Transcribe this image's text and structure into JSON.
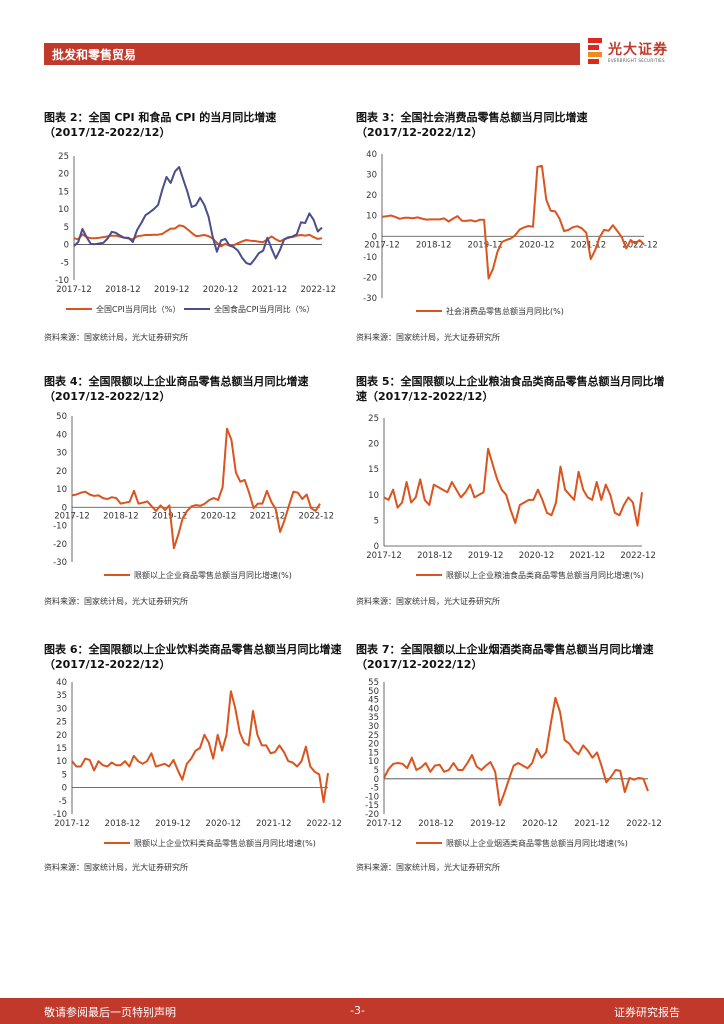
{
  "header": {
    "section": "批发和零售贸易",
    "logo_cn": "光大证券",
    "logo_en": "EVERBRIGHT SECURITIES"
  },
  "footer": {
    "left": "敬请参阅最后一页特别声明",
    "page": "-3-",
    "right": "证券研究报告"
  },
  "colors": {
    "red": "#d9541e",
    "navy": "#4a4e8a",
    "brand": "#c0392b"
  },
  "panels": [
    {
      "title_line1": "图表 2：全国 CPI 和食品 CPI 的当月同比增速",
      "title_line2": "（2017/12-2022/12）",
      "source": "资料来源：国家统计局，光大证券研究所"
    },
    {
      "title_line1": "图表 3：全国社会消费品零售总额当月同比增速",
      "title_line2": "（2017/12-2022/12）",
      "source": "资料来源：国家统计局，光大证券研究所"
    },
    {
      "title_line1": "图表 4：全国限额以上企业商品零售总额当月同比增速",
      "title_line2": "（2017/12-2022/12）",
      "source": "资料来源：国家统计局，光大证券研究所"
    },
    {
      "title_line1": "图表 5：全国限额以上企业粮油食品类商品零售总额当月同比增",
      "title_line2": "速（2017/12-2022/12）",
      "source": "资料来源：国家统计局，光大证券研究所"
    },
    {
      "title_line1": "图表 6：全国限额以上企业饮料类商品零售总额当月同比增速",
      "title_line2": "（2017/12-2022/12）",
      "source": "资料来源：国家统计局，光大证券研究所"
    },
    {
      "title_line1": "图表 7：全国限额以上企业烟酒类商品零售总额当月同比增速",
      "title_line2": "（2017/12-2022/12）",
      "source": "资料来源：国家统计局，光大证券研究所"
    }
  ],
  "chart_data": [
    {
      "type": "line",
      "x_ticks": [
        "2017-12",
        "2018-12",
        "2019-12",
        "2020-12",
        "2021-12",
        "2022-12"
      ],
      "ylim": [
        -10,
        25
      ],
      "y_ticks": [
        -10,
        -5,
        0,
        5,
        10,
        15,
        20,
        25
      ],
      "series": [
        {
          "name": "全国CPI当月同比（%）",
          "color": "#d9541e",
          "values": [
            1.8,
            1.5,
            2.9,
            2.1,
            1.8,
            1.8,
            1.9,
            2.1,
            2.3,
            2.5,
            2.5,
            2.2,
            1.9,
            1.7,
            1.5,
            2.3,
            2.5,
            2.7,
            2.7,
            2.8,
            2.8,
            3.0,
            3.8,
            4.5,
            4.5,
            5.4,
            5.2,
            4.3,
            3.3,
            2.4,
            2.5,
            2.7,
            2.4,
            1.7,
            0.5,
            -0.5,
            0.2,
            -0.3,
            -0.2,
            0.4,
            0.9,
            1.3,
            1.1,
            1.0,
            0.8,
            0.7,
            1.5,
            2.3,
            1.5,
            0.9,
            1.5,
            2.1,
            2.1,
            2.5,
            2.7,
            2.5,
            2.8,
            2.1,
            1.6,
            1.8
          ]
        },
        {
          "name": "全国食品CPI当月同比（%）",
          "color": "#4a4e8a",
          "values": [
            -0.4,
            0.7,
            4.4,
            2.1,
            0.2,
            0.1,
            0.3,
            0.5,
            1.7,
            3.6,
            3.3,
            2.5,
            1.9,
            1.9,
            0.7,
            4.1,
            6.1,
            8.3,
            9.1,
            10.0,
            11.2,
            15.5,
            19.1,
            17.4,
            20.6,
            21.9,
            18.3,
            14.8,
            10.6,
            11.1,
            13.2,
            11.2,
            7.9,
            2.2,
            -2.0,
            1.2,
            1.6,
            -0.3,
            -0.7,
            -1.7,
            -3.7,
            -5.2,
            -5.6,
            -4.1,
            -2.4,
            -1.7,
            1.9,
            -1.2,
            -3.9,
            -1.5,
            1.5,
            1.9,
            2.3,
            2.9,
            6.3,
            6.1,
            8.8,
            7.0,
            3.7,
            4.8
          ]
        }
      ]
    },
    {
      "type": "line",
      "x_ticks": [
        "2017-12",
        "2018-12",
        "2019-12",
        "2020-12",
        "2021-12",
        "2022-12"
      ],
      "ylim": [
        -30,
        40
      ],
      "y_ticks": [
        -30,
        -20,
        -10,
        0,
        10,
        20,
        30,
        40
      ],
      "series": [
        {
          "name": "社会消费品零售总额当月同比(%)",
          "color": "#d9541e",
          "values": [
            9.4,
            9.7,
            10.1,
            9.4,
            8.5,
            9.0,
            9.0,
            8.8,
            9.2,
            8.6,
            8.1,
            8.2,
            8.2,
            8.2,
            8.7,
            7.2,
            8.6,
            9.8,
            7.6,
            7.5,
            7.8,
            7.2,
            8.0,
            8.0,
            -20.5,
            -15.8,
            -7.5,
            -2.8,
            -1.8,
            -1.1,
            0.5,
            3.3,
            4.3,
            5.0,
            4.6,
            33.8,
            34.2,
            17.7,
            12.4,
            12.1,
            8.5,
            2.5,
            3.1,
            4.4,
            4.9,
            3.9,
            1.7,
            -11.1,
            -6.7,
            -0.5,
            3.1,
            2.7,
            5.4,
            2.5,
            -0.5,
            -5.9,
            -1.8,
            -3.5,
            -1.9,
            -4.0
          ]
        }
      ]
    },
    {
      "type": "line",
      "x_ticks": [
        "2017-12",
        "2018-12",
        "2019-12",
        "2020-12",
        "2021-12",
        "2022-12"
      ],
      "ylim": [
        -30,
        50
      ],
      "y_ticks": [
        -30,
        -20,
        -10,
        0,
        10,
        20,
        30,
        40,
        50
      ],
      "series": [
        {
          "name": "限额以上企业商品零售总额当月同比增速(%)",
          "color": "#d9541e",
          "values": [
            6.5,
            7.0,
            8.0,
            8.5,
            7.0,
            6.2,
            6.5,
            5.0,
            4.5,
            5.5,
            5.0,
            2.0,
            2.5,
            3.0,
            9.0,
            2.0,
            2.5,
            3.2,
            0.5,
            -2.0,
            1.0,
            -1.5,
            1.0,
            -22.5,
            -15.0,
            -6.0,
            -2.0,
            0.5,
            1.2,
            0.8,
            2.0,
            4.0,
            5.0,
            4.0,
            11.0,
            43.0,
            37.0,
            19.0,
            14.0,
            15.0,
            8.0,
            -0.5,
            2.0,
            2.0,
            9.0,
            3.0,
            -1.0,
            -13.5,
            -7.0,
            1.0,
            8.5,
            8.0,
            4.5,
            7.0,
            -0.5,
            -2.0,
            2.0
          ]
        }
      ]
    },
    {
      "type": "line",
      "x_ticks": [
        "2017-12",
        "2018-12",
        "2019-12",
        "2020-12",
        "2021-12",
        "2022-12"
      ],
      "ylim": [
        0,
        25
      ],
      "y_ticks": [
        0,
        5,
        10,
        15,
        20,
        25
      ],
      "series": [
        {
          "name": "限额以上企业粮油食品类商品零售总额当月同比增速(%)",
          "color": "#d9541e",
          "values": [
            9.5,
            9.0,
            11.0,
            7.5,
            8.5,
            12.5,
            8.5,
            9.5,
            13.0,
            9.0,
            8.0,
            12.0,
            11.5,
            11.0,
            10.5,
            12.5,
            11.0,
            9.5,
            10.5,
            12.0,
            9.5,
            10.0,
            10.5,
            19.0,
            16.0,
            13.0,
            11.0,
            10.0,
            7.0,
            4.5,
            8.0,
            8.5,
            9.0,
            9.0,
            11.0,
            9.0,
            6.5,
            6.0,
            8.5,
            15.5,
            11.0,
            10.0,
            9.0,
            14.5,
            11.0,
            9.5,
            9.0,
            12.5,
            9.0,
            12.0,
            10.0,
            6.5,
            6.0,
            8.0,
            9.5,
            8.5,
            4.0,
            10.5
          ]
        }
      ]
    },
    {
      "type": "line",
      "x_ticks": [
        "2017-12",
        "2018-12",
        "2019-12",
        "2020-12",
        "2021-12",
        "2022-12"
      ],
      "ylim": [
        -10,
        40
      ],
      "y_ticks": [
        -10,
        -5,
        0,
        5,
        10,
        15,
        20,
        25,
        30,
        35,
        40
      ],
      "series": [
        {
          "name": "限额以上企业饮料类商品零售总额当月同比增速(%)",
          "color": "#d9541e",
          "values": [
            10.0,
            8.0,
            8.0,
            11.0,
            10.5,
            6.5,
            10.0,
            8.5,
            8.0,
            9.5,
            8.5,
            8.5,
            10.0,
            8.0,
            12.0,
            10.0,
            9.0,
            10.0,
            13.0,
            8.0,
            8.5,
            9.0,
            8.0,
            10.5,
            6.5,
            3.0,
            9.0,
            11.0,
            14.0,
            15.0,
            20.0,
            17.0,
            11.0,
            20.0,
            14.0,
            20.0,
            36.5,
            30.0,
            21.0,
            17.0,
            16.0,
            29.0,
            20.0,
            16.0,
            16.0,
            13.0,
            13.5,
            16.0,
            13.5,
            10.0,
            9.5,
            8.0,
            10.0,
            15.5,
            8.0,
            6.0,
            5.0,
            -5.5,
            5.5
          ]
        }
      ]
    },
    {
      "type": "line",
      "x_ticks": [
        "2017-12",
        "2018-12",
        "2019-12",
        "2020-12",
        "2021-12",
        "2022-12"
      ],
      "ylim": [
        -20,
        55
      ],
      "y_ticks": [
        -20,
        -15,
        -10,
        -5,
        0,
        5,
        10,
        15,
        20,
        25,
        30,
        35,
        40,
        45,
        50,
        55
      ],
      "series": [
        {
          "name": "限额以上企业烟酒类商品零售总额当月同比增速(%)",
          "color": "#d9541e",
          "values": [
            0.5,
            5.5,
            8.5,
            9.0,
            8.5,
            6.0,
            12.0,
            5.0,
            6.5,
            9.0,
            4.0,
            7.5,
            8.0,
            4.0,
            5.0,
            9.0,
            5.0,
            5.0,
            9.0,
            13.5,
            7.0,
            5.0,
            7.5,
            9.5,
            4.0,
            -15.0,
            -8.0,
            0.0,
            7.5,
            9.0,
            7.5,
            6.0,
            9.0,
            17.0,
            12.0,
            15.0,
            31.0,
            46.0,
            38.0,
            22.0,
            20.0,
            16.0,
            14.0,
            19.0,
            16.0,
            12.0,
            15.0,
            7.0,
            -2.0,
            1.0,
            5.0,
            4.5,
            -7.5,
            0.5,
            -0.5,
            0.5,
            0.0,
            -7.0
          ]
        }
      ]
    }
  ]
}
